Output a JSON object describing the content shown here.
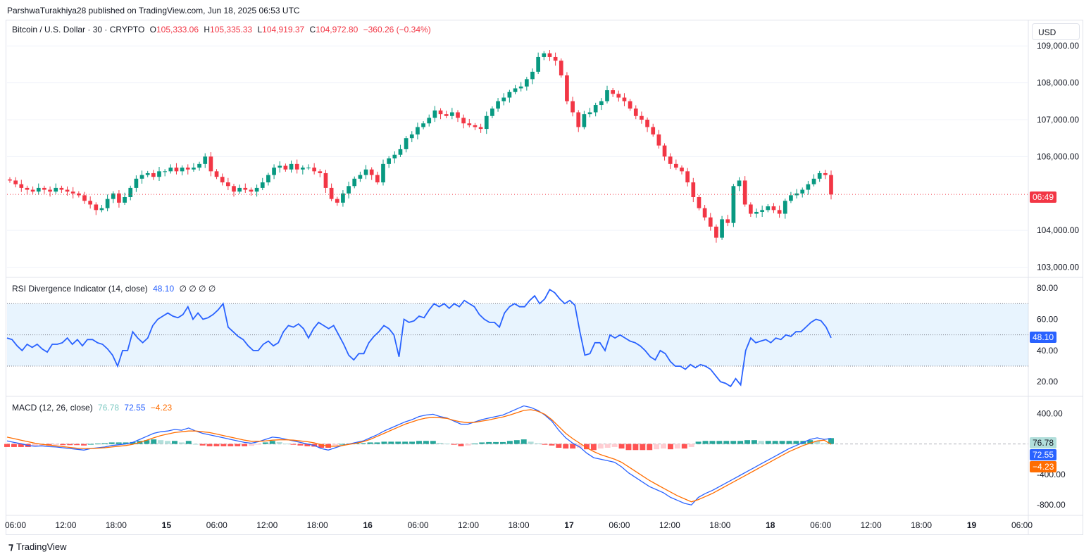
{
  "publish_line": "ParshwaTurakhiya28 published on TradingView.com, Jun 18, 2025 06:53 UTC",
  "symbol": {
    "name": "Bitcoin / U.S. Dollar · 30 · CRYPTO",
    "o_label": "O",
    "o": "105,333.06",
    "h_label": "H",
    "h": "105,335.33",
    "l_label": "L",
    "l": "104,919.37",
    "c_label": "C",
    "c": "104,972.80",
    "change": "−360.26 (−0.34%)"
  },
  "currency_button": "USD",
  "countdown_tag": "06:49",
  "rsi_legend": {
    "name": "RSI Divergence Indicator (14, close)",
    "value": "48.10",
    "extras": "∅ ∅ ∅ ∅"
  },
  "macd_legend": {
    "name": "MACD (12, 26, close)",
    "hist": "76.78",
    "macd": "72.55",
    "signal": "−4.23"
  },
  "footer_brand": "TradingView",
  "colors": {
    "up": "#089981",
    "down": "#f23645",
    "rsi": "#2962ff",
    "signal": "#ff6d00",
    "hist_up": "#26a69a",
    "hist_up_light": "#b2dfdb",
    "hist_down": "#ff5252",
    "hist_down_light": "#ffcdd2"
  },
  "chart_data": [
    {
      "type": "candlestick",
      "title": "Bitcoin / U.S. Dollar · 30 · CRYPTO",
      "ylim": [
        102800,
        109100
      ],
      "y_ticks": [
        "103,000.00",
        "104,000.00",
        "106,000.00",
        "107,000.00",
        "108,000.00",
        "109,000.00"
      ],
      "y_tick_values": [
        103000,
        104000,
        106000,
        107000,
        108000,
        109000
      ],
      "x_ticks": [
        "06:00",
        "12:00",
        "18:00",
        "15",
        "06:00",
        "12:00",
        "18:00",
        "16",
        "06:00",
        "12:00",
        "18:00",
        "17",
        "06:00",
        "12:00",
        "18:00",
        "18",
        "06:00",
        "12:00",
        "18:00",
        "19",
        "06:00"
      ],
      "close_path": [
        105350,
        105250,
        105150,
        105100,
        105050,
        105150,
        105100,
        105050,
        105150,
        105100,
        105050,
        105000,
        104950,
        104800,
        104700,
        104550,
        104600,
        104850,
        105000,
        104750,
        104900,
        105150,
        105400,
        105500,
        105550,
        105450,
        105600,
        105600,
        105700,
        105600,
        105700,
        105650,
        105700,
        105800,
        106000,
        105600,
        105450,
        105300,
        105200,
        105050,
        105150,
        105100,
        105050,
        105150,
        105300,
        105500,
        105700,
        105750,
        105650,
        105800,
        105650,
        105700,
        105700,
        105600,
        105550,
        105150,
        104850,
        104750,
        105000,
        105200,
        105400,
        105500,
        105650,
        105500,
        105300,
        105800,
        105950,
        106050,
        106200,
        106500,
        106600,
        106800,
        106900,
        107050,
        107250,
        107150,
        107100,
        107200,
        107050,
        106900,
        106850,
        106800,
        106750,
        107100,
        107300,
        107500,
        107600,
        107750,
        107850,
        107900,
        108100,
        108300,
        108700,
        108800,
        108700,
        108600,
        108200,
        107500,
        107200,
        106800,
        107150,
        107200,
        107400,
        107500,
        107800,
        107700,
        107600,
        107500,
        107300,
        107100,
        107000,
        106800,
        106600,
        106300,
        106000,
        105800,
        105700,
        105600,
        105300,
        104900,
        104600,
        104350,
        104100,
        103800,
        104300,
        104200,
        105200,
        105350,
        104700,
        104450,
        104500,
        104550,
        104650,
        104550,
        104450,
        104800,
        104950,
        105000,
        105100,
        105250,
        105400,
        105550,
        105500,
        104972.8
      ]
    },
    {
      "type": "line",
      "title": "RSI Divergence Indicator (14, close)",
      "ylim": [
        12,
        85
      ],
      "y_ticks": [
        "20.00",
        "40.00",
        "60.00",
        "80.00"
      ],
      "y_tick_values": [
        20,
        40,
        60,
        80
      ],
      "band": [
        30,
        70
      ],
      "midline": 50,
      "last": 48.1,
      "values": [
        48,
        47,
        43,
        40,
        44,
        42,
        44,
        41,
        39,
        44,
        44,
        45,
        48,
        44,
        47,
        43,
        47,
        47,
        45,
        44,
        41,
        37,
        30,
        40,
        40,
        52,
        48,
        45,
        48,
        56,
        60,
        62,
        64,
        62,
        61,
        63,
        68,
        60,
        64,
        60,
        61,
        63,
        66,
        70,
        55,
        52,
        49,
        47,
        43,
        40,
        40,
        44,
        46,
        43,
        45,
        52,
        56,
        55,
        57,
        54,
        48,
        54,
        58,
        56,
        54,
        56,
        50,
        44,
        37,
        34,
        38,
        38,
        45,
        49,
        52,
        56,
        54,
        50,
        36,
        60,
        58,
        59,
        62,
        61,
        66,
        70,
        68,
        70,
        67,
        70,
        68,
        72,
        70,
        68,
        63,
        60,
        58,
        58,
        55,
        64,
        68,
        70,
        68,
        68,
        72,
        75,
        70,
        73,
        79,
        77,
        73,
        70,
        72,
        69,
        52,
        37,
        38,
        45,
        45,
        40,
        50,
        48,
        50,
        48,
        46,
        45,
        43,
        40,
        36,
        34,
        40,
        38,
        33,
        30,
        30,
        28,
        31,
        29,
        31,
        30,
        28,
        24,
        20,
        19,
        17,
        22,
        18,
        40,
        48,
        45,
        46,
        47,
        45,
        48,
        47,
        50,
        49,
        52,
        52,
        55,
        58,
        60,
        59,
        55,
        48.1
      ]
    },
    {
      "type": "bar+line",
      "title": "MACD (12, 26, close)",
      "ylim": [
        -900,
        560
      ],
      "y_ticks": [
        "-800.00",
        "-400.00",
        "400.00"
      ],
      "y_tick_values": [
        -800,
        -400,
        400
      ],
      "series": [
        {
          "name": "MACD",
          "values": [
            40,
            20,
            5,
            -20,
            -30,
            -25,
            -35,
            -40,
            -50,
            -60,
            -70,
            -80,
            -60,
            -50,
            -40,
            -20,
            -10,
            0,
            20,
            60,
            100,
            140,
            160,
            170,
            190,
            180,
            210,
            170,
            140,
            120,
            100,
            80,
            60,
            40,
            20,
            10,
            30,
            60,
            90,
            80,
            60,
            40,
            20,
            0,
            -20,
            -60,
            -80,
            -50,
            -20,
            0,
            20,
            40,
            80,
            120,
            170,
            210,
            250,
            290,
            320,
            360,
            380,
            390,
            360,
            340,
            300,
            260,
            260,
            290,
            320,
            340,
            360,
            380,
            420,
            460,
            500,
            480,
            440,
            380,
            300,
            180,
            80,
            10,
            -40,
            -120,
            -180,
            -200,
            -220,
            -240,
            -300,
            -380,
            -440,
            -500,
            -560,
            -600,
            -640,
            -700,
            -740,
            -780,
            -800,
            -700,
            -650,
            -610,
            -560,
            -510,
            -460,
            -410,
            -360,
            -310,
            -260,
            -210,
            -160,
            -110,
            -60,
            -20,
            20,
            60,
            80,
            60,
            72.55
          ]
        },
        {
          "name": "Signal",
          "values": [
            90,
            70,
            50,
            30,
            10,
            -5,
            -15,
            -25,
            -35,
            -45,
            -55,
            -60,
            -60,
            -55,
            -50,
            -40,
            -30,
            -20,
            -5,
            20,
            50,
            80,
            110,
            130,
            150,
            160,
            170,
            170,
            160,
            150,
            130,
            110,
            90,
            70,
            50,
            35,
            35,
            40,
            50,
            55,
            55,
            50,
            40,
            30,
            15,
            -10,
            -30,
            -30,
            -20,
            -5,
            10,
            30,
            60,
            100,
            140,
            180,
            220,
            260,
            290,
            320,
            340,
            350,
            345,
            335,
            310,
            290,
            280,
            285,
            300,
            315,
            335,
            355,
            380,
            410,
            440,
            450,
            430,
            390,
            320,
            230,
            140,
            70,
            10,
            -50,
            -100,
            -140,
            -170,
            -200,
            -240,
            -300,
            -360,
            -420,
            -480,
            -530,
            -580,
            -630,
            -680,
            -720,
            -760,
            -730,
            -690,
            -650,
            -600,
            -550,
            -500,
            -450,
            -400,
            -350,
            -300,
            -250,
            -200,
            -150,
            -100,
            -60,
            -20,
            10,
            40,
            50,
            -4.23
          ]
        },
        {
          "name": "Histogram",
          "values": [
            -40,
            -40,
            -40,
            -40,
            -30,
            -20,
            -20,
            -15,
            -15,
            -15,
            -15,
            -20,
            0,
            5,
            10,
            20,
            20,
            20,
            25,
            40,
            50,
            60,
            50,
            40,
            40,
            20,
            40,
            0,
            -20,
            -30,
            -30,
            -30,
            -30,
            -30,
            -30,
            -25,
            -5,
            20,
            40,
            25,
            5,
            -10,
            -20,
            -30,
            -35,
            -50,
            -50,
            -20,
            0,
            5,
            10,
            10,
            20,
            20,
            30,
            30,
            30,
            30,
            30,
            40,
            40,
            40,
            15,
            5,
            -10,
            -30,
            -20,
            5,
            20,
            25,
            25,
            25,
            40,
            50,
            60,
            30,
            10,
            -10,
            -20,
            -50,
            -60,
            -60,
            -50,
            -70,
            -80,
            -60,
            -50,
            -40,
            -60,
            -80,
            -80,
            -80,
            -80,
            -70,
            -60,
            -70,
            -60,
            -60,
            -40,
            30,
            40,
            40,
            40,
            40,
            40,
            40,
            50,
            50,
            40,
            40,
            40,
            40,
            40,
            40,
            40,
            50,
            40,
            10,
            76.78
          ]
        }
      ]
    }
  ]
}
